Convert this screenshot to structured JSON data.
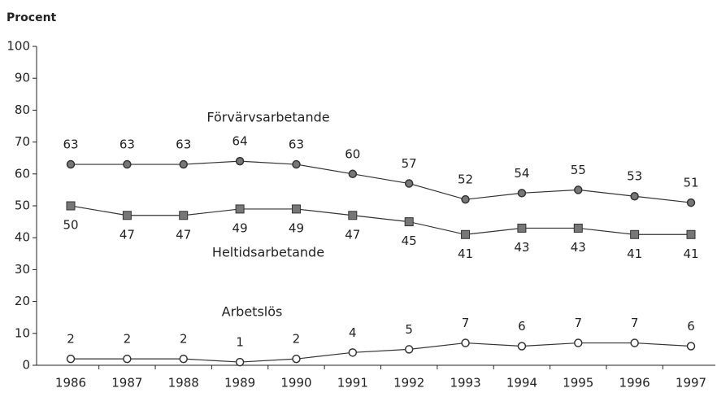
{
  "chart_data": {
    "type": "line",
    "y_axis_label": "Procent",
    "categories": [
      "1986",
      "1987",
      "1988",
      "1989",
      "1990",
      "1991",
      "1992",
      "1993",
      "1994",
      "1995",
      "1996",
      "1997"
    ],
    "series": [
      {
        "name": "Förvärvsarbetande",
        "color": "#777777",
        "marker": "circle",
        "values": [
          63,
          63,
          63,
          64,
          63,
          60,
          57,
          52,
          54,
          55,
          53,
          51
        ]
      },
      {
        "name": "Heltidsarbetande",
        "color": "#777777",
        "marker": "square",
        "values": [
          50,
          47,
          47,
          49,
          49,
          47,
          45,
          41,
          43,
          43,
          41,
          41
        ]
      },
      {
        "name": "Arbetslös",
        "color": "#ffffff",
        "marker": "circle",
        "values": [
          2,
          2,
          2,
          1,
          2,
          4,
          5,
          7,
          6,
          7,
          7,
          6
        ]
      }
    ],
    "ylim": [
      0,
      100
    ],
    "yticks": [
      0,
      10,
      20,
      30,
      40,
      50,
      60,
      70,
      80,
      90,
      100
    ],
    "grid": false
  }
}
